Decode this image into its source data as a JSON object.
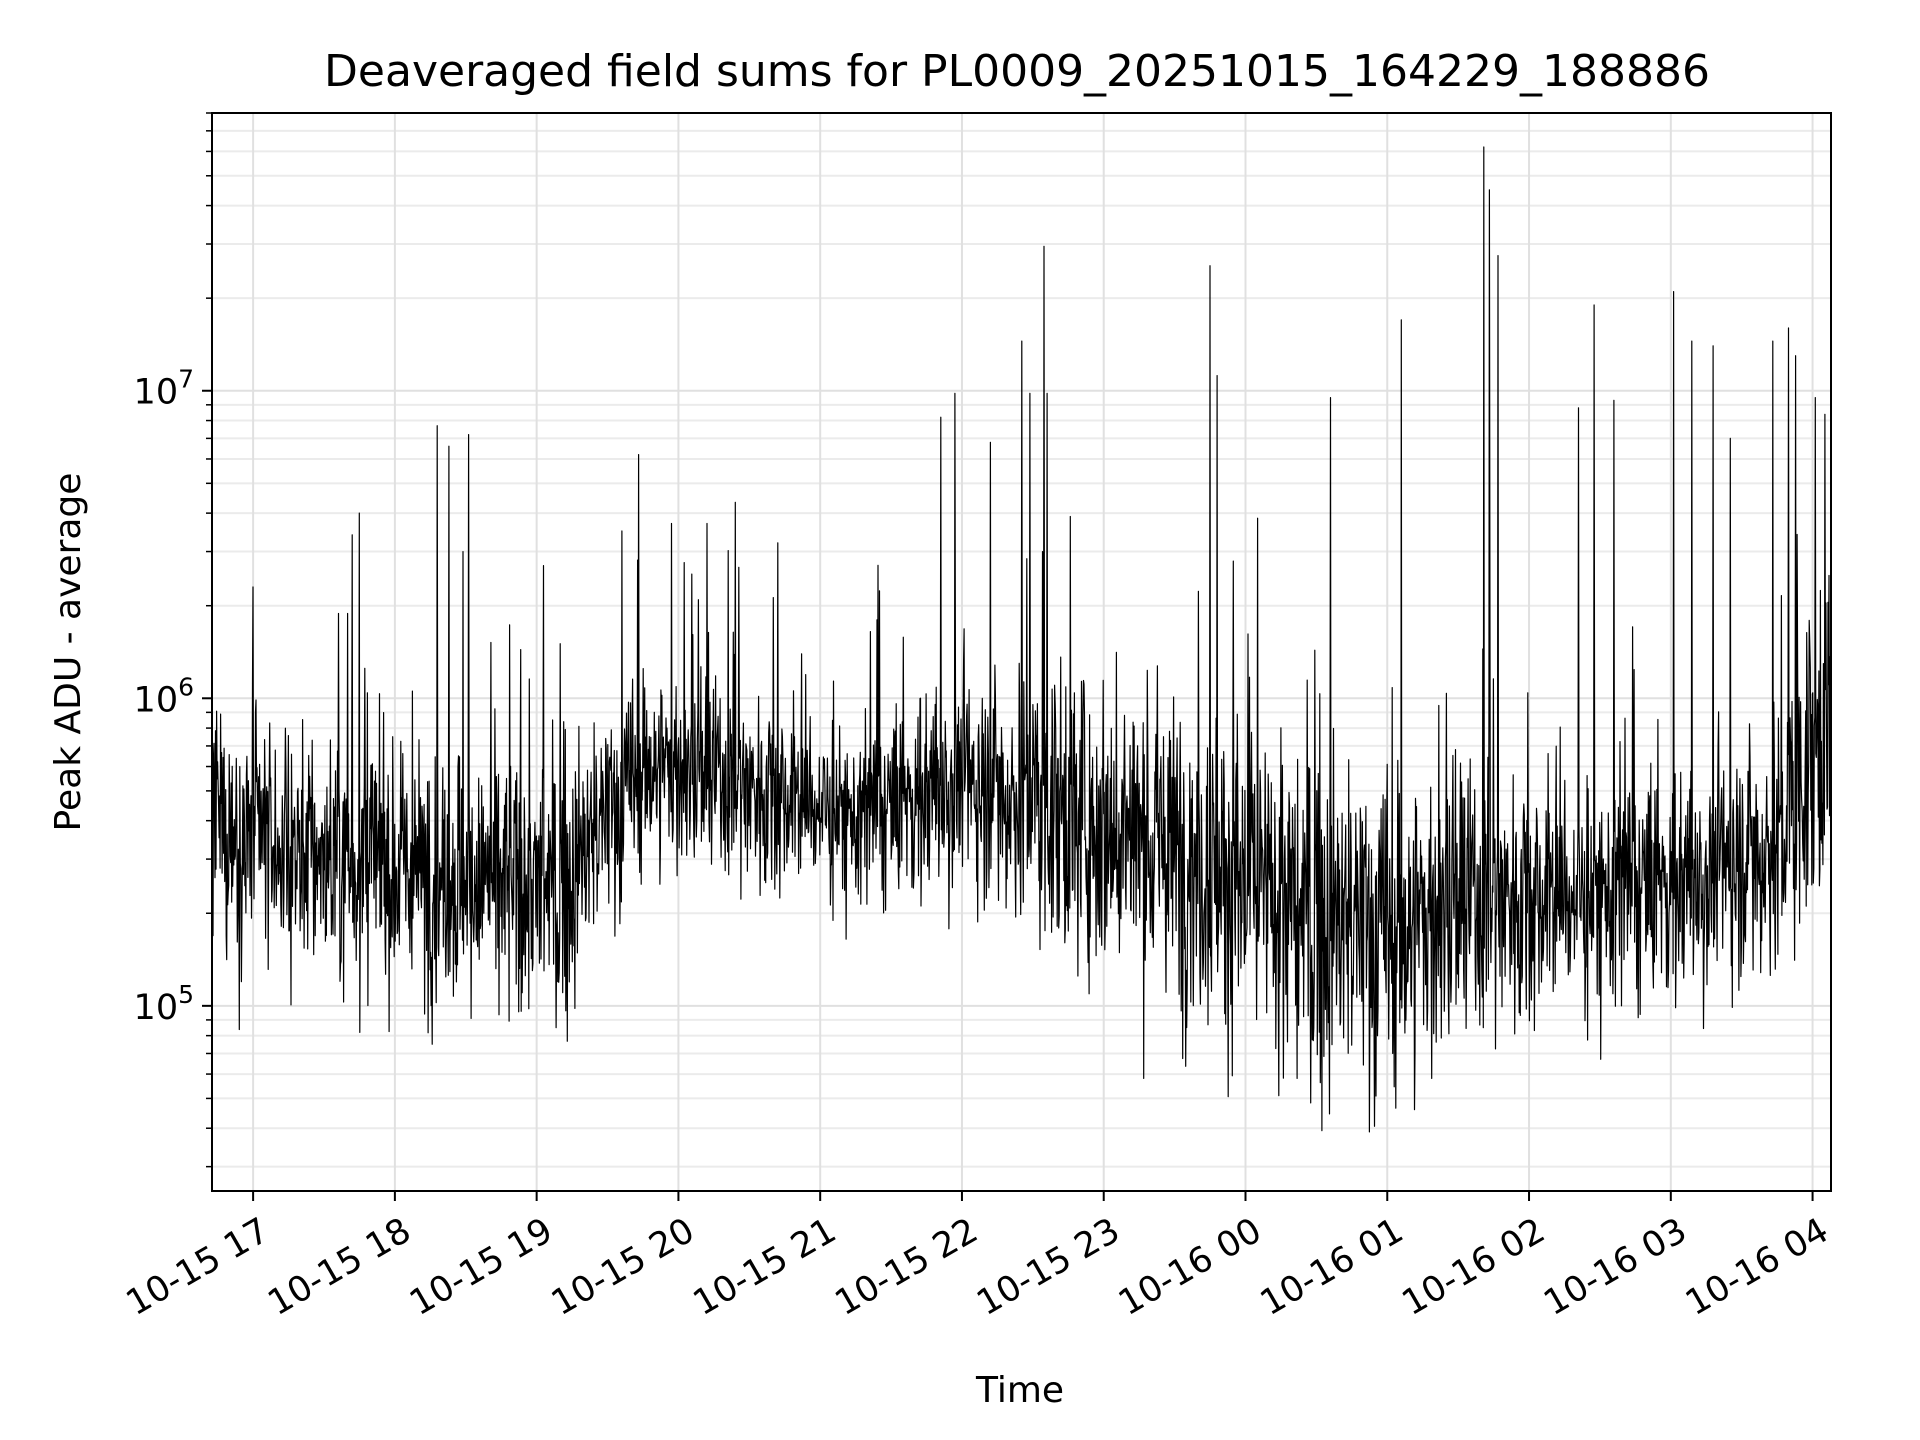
{
  "chart_data": {
    "type": "line",
    "title": "Deaveraged field sums for PL0009_20251015_164229_188886",
    "xlabel": "Time",
    "ylabel": "Peak ADU - average",
    "yscale": "log",
    "ylim": [
      25000,
      80000000
    ],
    "xlim_hours": [
      16.71,
      28.13
    ],
    "x_tick_labels": [
      "10-15 17",
      "10-15 18",
      "10-15 19",
      "10-15 20",
      "10-15 21",
      "10-15 22",
      "10-15 23",
      "10-16 00",
      "10-16 01",
      "10-16 02",
      "10-16 03",
      "10-16 04"
    ],
    "x_tick_hours": [
      17,
      18,
      19,
      20,
      21,
      22,
      23,
      24,
      25,
      26,
      27,
      28
    ],
    "y_tick_labels": [
      {
        "base": "10",
        "exp": "5",
        "value": 100000
      },
      {
        "base": "10",
        "exp": "6",
        "value": 1000000
      },
      {
        "base": "10",
        "exp": "7",
        "value": 10000000
      }
    ],
    "grid": true,
    "series": [
      {
        "name": "Deaveraged field sums",
        "color": "#000000",
        "n_points": 3200,
        "baseline_profile": {
          "hours": [
            16.71,
            17.5,
            18.5,
            19.2,
            19.8,
            20.5,
            21.3,
            22.0,
            22.8,
            23.5,
            24.3,
            25.0,
            25.8,
            26.5,
            27.2,
            27.8,
            28.13
          ],
          "median_values": [
            380000,
            300000,
            260000,
            230000,
            600000,
            520000,
            400000,
            550000,
            420000,
            320000,
            200000,
            170000,
            230000,
            230000,
            260000,
            350000,
            900000
          ],
          "spread_decades": [
            0.32,
            0.32,
            0.32,
            0.32,
            0.26,
            0.26,
            0.22,
            0.3,
            0.36,
            0.4,
            0.44,
            0.44,
            0.34,
            0.3,
            0.3,
            0.36,
            0.42
          ]
        },
        "spikes": [
          {
            "hour": 17.0,
            "value": 2300000
          },
          {
            "hour": 17.75,
            "value": 4000000
          },
          {
            "hour": 17.7,
            "value": 3400000
          },
          {
            "hour": 18.3,
            "value": 7700000
          },
          {
            "hour": 18.38,
            "value": 6600000
          },
          {
            "hour": 18.52,
            "value": 7200000
          },
          {
            "hour": 18.48,
            "value": 3000000
          },
          {
            "hour": 19.05,
            "value": 2700000
          },
          {
            "hour": 19.6,
            "value": 3500000
          },
          {
            "hour": 19.72,
            "value": 6200000
          },
          {
            "hour": 19.95,
            "value": 3700000
          },
          {
            "hour": 20.2,
            "value": 3700000
          },
          {
            "hour": 20.7,
            "value": 3200000
          },
          {
            "hour": 21.4,
            "value": 1800000
          },
          {
            "hour": 21.85,
            "value": 8200000
          },
          {
            "hour": 21.95,
            "value": 9800000
          },
          {
            "hour": 22.2,
            "value": 6800000
          },
          {
            "hour": 22.42,
            "value": 14500000
          },
          {
            "hour": 22.48,
            "value": 9800000
          },
          {
            "hour": 22.58,
            "value": 29500000
          },
          {
            "hour": 22.6,
            "value": 9800000
          },
          {
            "hour": 23.75,
            "value": 25500000
          },
          {
            "hour": 23.8,
            "value": 11200000
          },
          {
            "hour": 24.6,
            "value": 9500000
          },
          {
            "hour": 25.1,
            "value": 17000000
          },
          {
            "hour": 25.68,
            "value": 62000000
          },
          {
            "hour": 25.72,
            "value": 45000000
          },
          {
            "hour": 25.78,
            "value": 27500000
          },
          {
            "hour": 26.35,
            "value": 8800000
          },
          {
            "hour": 26.46,
            "value": 19000000
          },
          {
            "hour": 26.6,
            "value": 9300000
          },
          {
            "hour": 27.02,
            "value": 21000000
          },
          {
            "hour": 27.15,
            "value": 14500000
          },
          {
            "hour": 27.3,
            "value": 14000000
          },
          {
            "hour": 27.42,
            "value": 7000000
          },
          {
            "hour": 27.72,
            "value": 14500000
          },
          {
            "hour": 27.83,
            "value": 16000000
          },
          {
            "hour": 27.88,
            "value": 13000000
          },
          {
            "hour": 28.02,
            "value": 9500000
          }
        ]
      }
    ]
  }
}
